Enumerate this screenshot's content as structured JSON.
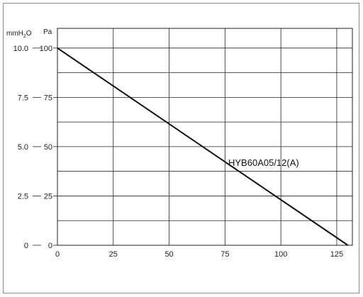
{
  "chart_data": {
    "type": "line",
    "title": "",
    "x_ticks": [
      "0",
      "25",
      "50",
      "75",
      "100",
      "125"
    ],
    "x_tick_values": [
      0,
      25,
      50,
      75,
      100,
      125
    ],
    "xlim": [
      0,
      132
    ],
    "ylim": [
      0,
      110
    ],
    "y_pa_ticks": [
      "0",
      "25",
      "50",
      "75",
      "100"
    ],
    "y_pa_tick_values": [
      0,
      25,
      50,
      75,
      100
    ],
    "y_mmh2o_ticks": [
      "0",
      "2.5",
      "5.0",
      "7.5",
      "10.0"
    ],
    "y_mmh2o_tick_values": [
      0,
      25,
      50,
      75,
      100
    ],
    "y_units": {
      "mmh2o_base": "mmH",
      "mmh2o_sub": "2",
      "mmh2o_tail": "O",
      "pa": "Pa"
    },
    "grid": true,
    "series": [
      {
        "name": "HYB60A05/12(A)",
        "x": [
          0,
          130
        ],
        "y": [
          100,
          0
        ]
      }
    ],
    "colors": {
      "line": "#111111",
      "grid": "#222222",
      "frame": "#8c8c8c"
    }
  }
}
